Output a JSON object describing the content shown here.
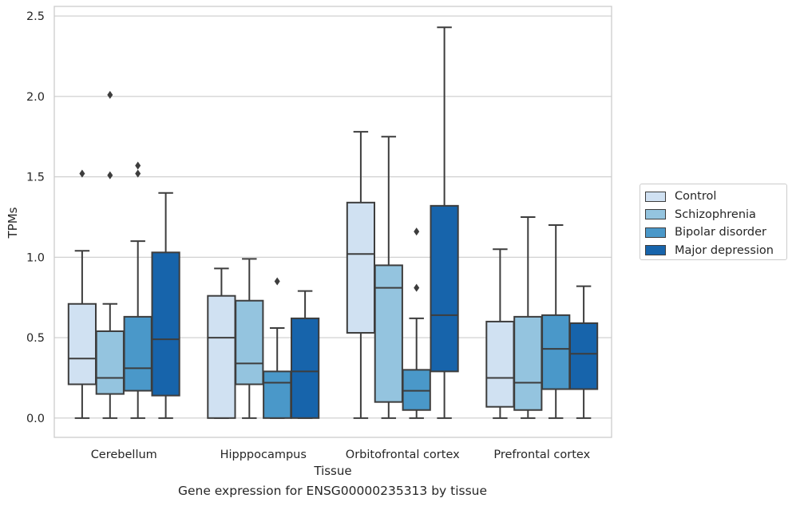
{
  "chart_data": {
    "type": "box",
    "xlabel": "Tissue",
    "ylabel": "TPMs",
    "caption": "Gene expression for ENSG00000235313 by tissue",
    "ylim": [
      -0.12,
      2.56
    ],
    "yticks": [
      0.0,
      0.5,
      1.0,
      1.5,
      2.0,
      2.5
    ],
    "ytick_labels": [
      "0.0",
      "0.5",
      "1.0",
      "1.5",
      "2.0",
      "2.5"
    ],
    "grid": "horizontal",
    "legend_position": "right",
    "categories": [
      "Cerebellum",
      "Hipppocampus",
      "Orbitofrontal cortex",
      "Prefrontal cortex"
    ],
    "series": [
      {
        "name": "Control",
        "color": "#d0e1f2",
        "boxes": [
          {
            "whisker_low": 0.0,
            "q1": 0.21,
            "median": 0.37,
            "q3": 0.71,
            "whisker_high": 1.04,
            "outliers": [
              1.52
            ]
          },
          {
            "whisker_low": 0.0,
            "q1": 0.0,
            "median": 0.5,
            "q3": 0.76,
            "whisker_high": 0.93,
            "outliers": []
          },
          {
            "whisker_low": 0.0,
            "q1": 0.53,
            "median": 1.02,
            "q3": 1.34,
            "whisker_high": 1.78,
            "outliers": []
          },
          {
            "whisker_low": 0.0,
            "q1": 0.07,
            "median": 0.25,
            "q3": 0.6,
            "whisker_high": 1.05,
            "outliers": []
          }
        ]
      },
      {
        "name": "Schizophrenia",
        "color": "#94c4df",
        "boxes": [
          {
            "whisker_low": 0.0,
            "q1": 0.15,
            "median": 0.25,
            "q3": 0.54,
            "whisker_high": 0.71,
            "outliers": [
              1.51,
              2.01
            ]
          },
          {
            "whisker_low": 0.0,
            "q1": 0.21,
            "median": 0.34,
            "q3": 0.73,
            "whisker_high": 0.99,
            "outliers": []
          },
          {
            "whisker_low": 0.0,
            "q1": 0.1,
            "median": 0.81,
            "q3": 0.95,
            "whisker_high": 1.75,
            "outliers": []
          },
          {
            "whisker_low": 0.0,
            "q1": 0.05,
            "median": 0.22,
            "q3": 0.63,
            "whisker_high": 1.25,
            "outliers": []
          }
        ]
      },
      {
        "name": "Bipolar disorder",
        "color": "#4a98c9",
        "boxes": [
          {
            "whisker_low": 0.0,
            "q1": 0.17,
            "median": 0.31,
            "q3": 0.63,
            "whisker_high": 1.1,
            "outliers": [
              1.52,
              1.57
            ]
          },
          {
            "whisker_low": 0.0,
            "q1": 0.0,
            "median": 0.22,
            "q3": 0.29,
            "whisker_high": 0.56,
            "outliers": [
              0.85
            ]
          },
          {
            "whisker_low": 0.0,
            "q1": 0.05,
            "median": 0.17,
            "q3": 0.3,
            "whisker_high": 0.62,
            "outliers": [
              0.81,
              1.16
            ]
          },
          {
            "whisker_low": 0.0,
            "q1": 0.18,
            "median": 0.43,
            "q3": 0.64,
            "whisker_high": 1.2,
            "outliers": []
          }
        ]
      },
      {
        "name": "Major depression",
        "color": "#1764ab",
        "boxes": [
          {
            "whisker_low": 0.0,
            "q1": 0.14,
            "median": 0.49,
            "q3": 1.03,
            "whisker_high": 1.4,
            "outliers": []
          },
          {
            "whisker_low": 0.0,
            "q1": 0.0,
            "median": 0.29,
            "q3": 0.62,
            "whisker_high": 0.79,
            "outliers": []
          },
          {
            "whisker_low": 0.0,
            "q1": 0.29,
            "median": 0.64,
            "q3": 1.32,
            "whisker_high": 2.43,
            "outliers": []
          },
          {
            "whisker_low": 0.0,
            "q1": 0.18,
            "median": 0.4,
            "q3": 0.59,
            "whisker_high": 0.82,
            "outliers": []
          }
        ]
      }
    ],
    "colors": {
      "line": "#3d3d3d",
      "grid": "#cccccc",
      "frame": "#cccccc"
    }
  }
}
